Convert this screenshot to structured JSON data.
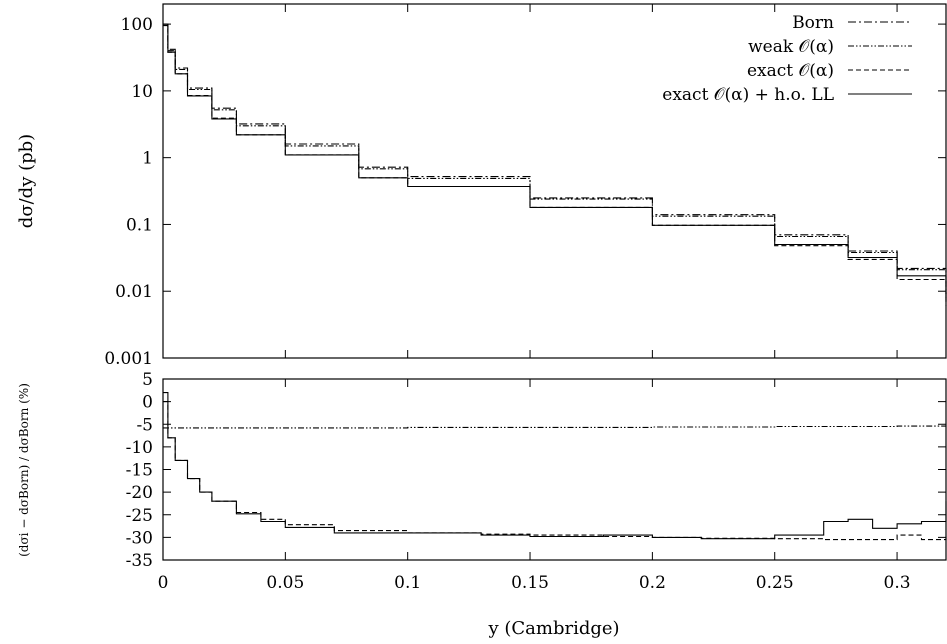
{
  "chart_data": [
    {
      "type": "line",
      "ylabel": "dσ/dy (pb)",
      "xlabel": "",
      "yscale": "log",
      "ylim": [
        0.001,
        200
      ],
      "xlim": [
        0,
        0.32
      ],
      "yticks": [
        "100",
        "10",
        "1",
        "0.1",
        "0.01",
        "0.001"
      ],
      "ytick_values": [
        100,
        10,
        1,
        0.1,
        0.01,
        0.001
      ],
      "legend_position": "top-right",
      "series": [
        {
          "name": "Born",
          "style": "dash-dot",
          "x": [
            0.0,
            0.002,
            0.005,
            0.01,
            0.02,
            0.03,
            0.05,
            0.08,
            0.1,
            0.15,
            0.2,
            0.25,
            0.28,
            0.3,
            0.32
          ],
          "y": [
            100,
            42,
            22,
            11,
            5.5,
            3.2,
            1.6,
            0.72,
            0.52,
            0.25,
            0.14,
            0.07,
            0.04,
            0.022,
            0.0085
          ]
        },
        {
          "name": "weak 𝒪(α)",
          "style": "dash-dot-dot",
          "x": [
            0.0,
            0.002,
            0.005,
            0.01,
            0.02,
            0.03,
            0.05,
            0.08,
            0.1,
            0.15,
            0.2,
            0.25,
            0.28,
            0.3,
            0.32
          ],
          "y": [
            95,
            40,
            21,
            10.5,
            5.2,
            3.0,
            1.5,
            0.68,
            0.49,
            0.24,
            0.133,
            0.066,
            0.038,
            0.021,
            0.008
          ]
        },
        {
          "name": "exact 𝒪(α)",
          "style": "dashed",
          "x": [
            0.0,
            0.002,
            0.005,
            0.01,
            0.02,
            0.03,
            0.05,
            0.08,
            0.1,
            0.15,
            0.2,
            0.25,
            0.28,
            0.3,
            0.32
          ],
          "y": [
            100,
            38,
            18,
            8.5,
            3.9,
            2.2,
            1.1,
            0.5,
            0.37,
            0.18,
            0.097,
            0.048,
            0.03,
            0.015,
            0.006
          ]
        },
        {
          "name": "exact 𝒪(α) + h.o. LL",
          "style": "solid",
          "x": [
            0.0,
            0.002,
            0.005,
            0.01,
            0.02,
            0.03,
            0.05,
            0.08,
            0.1,
            0.15,
            0.2,
            0.25,
            0.28,
            0.3,
            0.32
          ],
          "y": [
            100,
            38,
            18,
            8.4,
            3.8,
            2.2,
            1.1,
            0.5,
            0.37,
            0.18,
            0.097,
            0.05,
            0.032,
            0.017,
            0.007
          ]
        }
      ]
    },
    {
      "type": "line",
      "ylabel": "(dσi − dσBorn) / dσBorn (%)",
      "xlabel": "y (Cambridge)",
      "ylim": [
        -35,
        5
      ],
      "xlim": [
        0,
        0.32
      ],
      "yticks": [
        "5",
        "0",
        "-5",
        "-10",
        "-15",
        "-20",
        "-25",
        "-30",
        "-35"
      ],
      "ytick_values": [
        5,
        0,
        -5,
        -10,
        -15,
        -20,
        -25,
        -30,
        -35
      ],
      "xticks": [
        "0",
        "0.05",
        "0.1",
        "0.15",
        "0.2",
        "0.25",
        "0.3"
      ],
      "xtick_values": [
        0,
        0.05,
        0.1,
        0.15,
        0.2,
        0.25,
        0.3
      ],
      "series": [
        {
          "style": "dash-dot-dot",
          "x": [
            0.0,
            0.05,
            0.1,
            0.15,
            0.2,
            0.25,
            0.3,
            0.32
          ],
          "y": [
            -5.8,
            -5.8,
            -5.7,
            -5.7,
            -5.6,
            -5.5,
            -5.4,
            -5.4
          ]
        },
        {
          "style": "dashed",
          "x": [
            0.0,
            0.002,
            0.005,
            0.01,
            0.015,
            0.02,
            0.03,
            0.04,
            0.05,
            0.07,
            0.1,
            0.13,
            0.15,
            0.18,
            0.2,
            0.22,
            0.25,
            0.27,
            0.29,
            0.3,
            0.31,
            0.32
          ],
          "y": [
            0,
            -8,
            -13,
            -17,
            -20,
            -22,
            -24.5,
            -26,
            -27.2,
            -28.5,
            -29,
            -29.3,
            -29.5,
            -29.8,
            -30,
            -30.2,
            -30.3,
            -30.5,
            -30.5,
            -29.5,
            -30.5,
            -29.5
          ]
        },
        {
          "style": "solid",
          "x": [
            0.0,
            0.002,
            0.005,
            0.01,
            0.015,
            0.02,
            0.03,
            0.04,
            0.05,
            0.07,
            0.1,
            0.13,
            0.15,
            0.18,
            0.2,
            0.22,
            0.25,
            0.27,
            0.28,
            0.29,
            0.3,
            0.31,
            0.32
          ],
          "y": [
            2,
            -8,
            -13,
            -17,
            -20,
            -22,
            -24.8,
            -26.5,
            -27.8,
            -29,
            -29,
            -29.5,
            -29.8,
            -29.5,
            -30,
            -30.3,
            -29.5,
            -26.5,
            -26,
            -28,
            -27,
            -26.5,
            -22
          ]
        }
      ]
    }
  ]
}
